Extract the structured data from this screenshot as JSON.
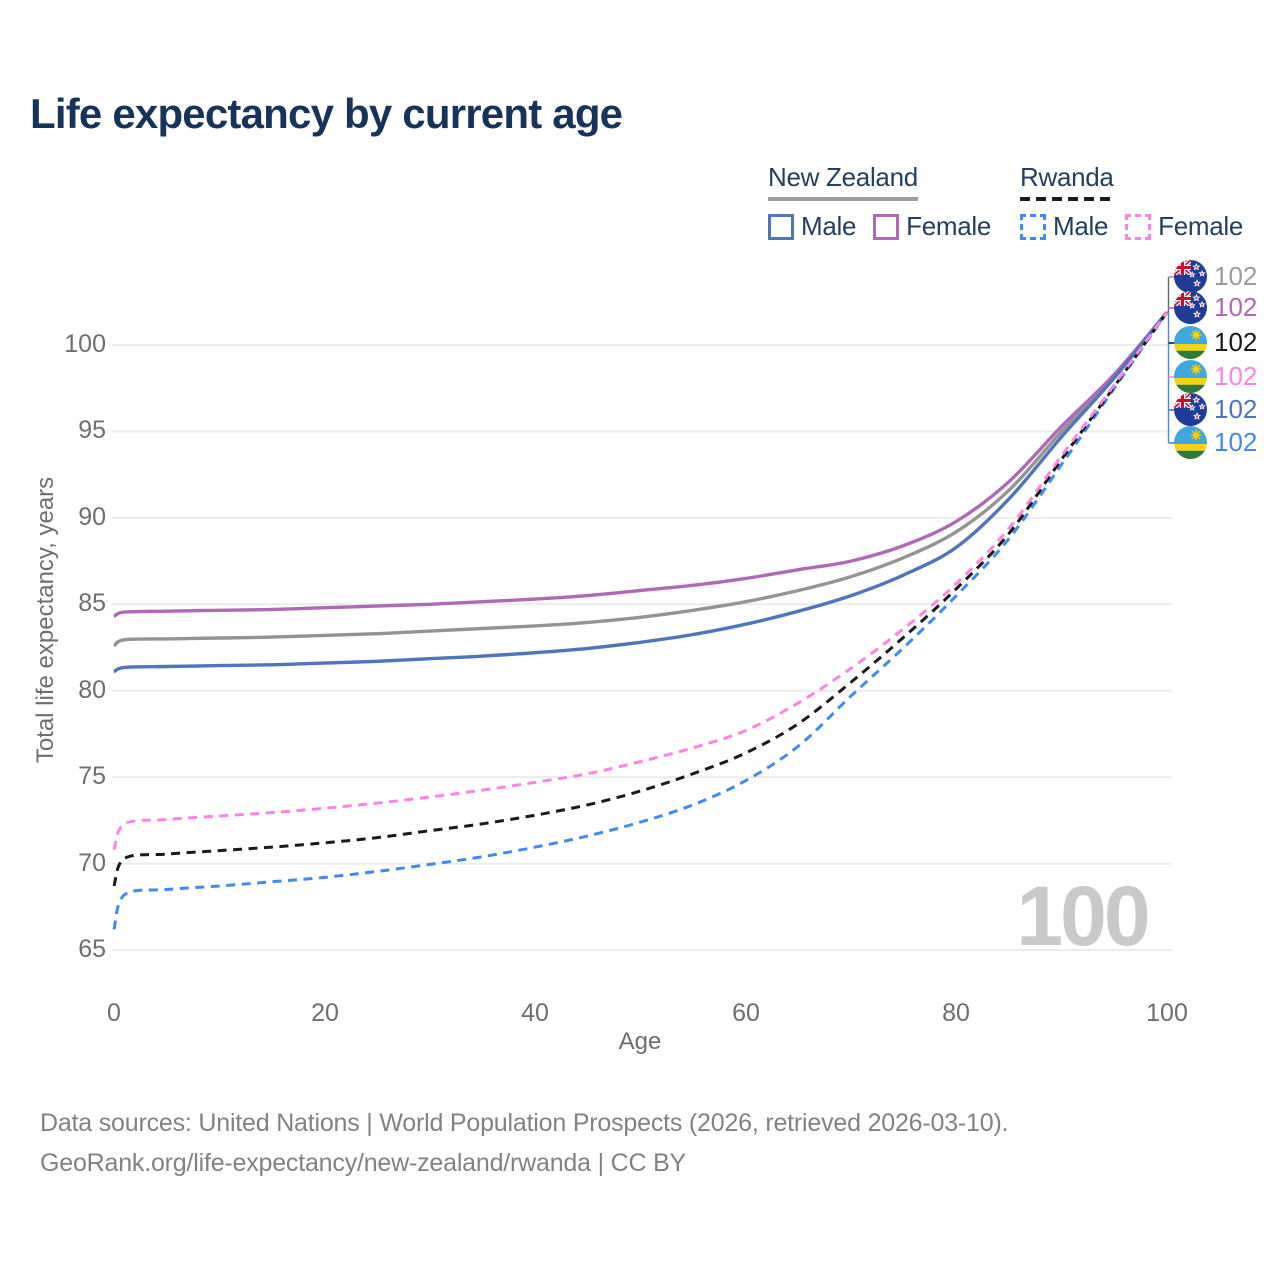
{
  "title": "Life expectancy by current age",
  "watermark_age": "100",
  "legend": {
    "groups": [
      {
        "country": "New Zealand",
        "line_style": "solid",
        "underline_color": "#9e9e9e",
        "items": [
          {
            "label": "Male",
            "color": "#4f75bd"
          },
          {
            "label": "Female",
            "color": "#b06ab5"
          }
        ]
      },
      {
        "country": "Rwanda",
        "line_style": "dashed",
        "underline_color": "#1a1a1a",
        "items": [
          {
            "label": "Male",
            "color": "#4189f4"
          },
          {
            "label": "Female",
            "color": "#fc84e4"
          }
        ]
      }
    ]
  },
  "chart_data": {
    "type": "line",
    "title": "Life expectancy by current age",
    "xlabel": "Age",
    "ylabel": "Total life expectancy, years",
    "xlim": [
      0,
      100
    ],
    "ylim": [
      64.5,
      102.5
    ],
    "x_ticks": [
      0,
      20,
      40,
      60,
      80,
      100
    ],
    "y_ticks": [
      65,
      70,
      75,
      80,
      85,
      90,
      95,
      100
    ],
    "grid": "horizontal",
    "gridline_color": "#ececec",
    "legend_position": "top-right",
    "ages": [
      0,
      1,
      5,
      10,
      15,
      20,
      25,
      30,
      35,
      40,
      45,
      50,
      55,
      60,
      65,
      70,
      75,
      80,
      85,
      90,
      95,
      100
    ],
    "series": [
      {
        "name": "New Zealand Both sexes",
        "country": "New Zealand",
        "sex": "Both sexes",
        "style": "solid",
        "color": "#949494",
        "values": [
          82.6,
          82.95,
          83.0,
          83.05,
          83.1,
          83.2,
          83.3,
          83.45,
          83.6,
          83.75,
          83.95,
          84.25,
          84.65,
          85.15,
          85.8,
          86.6,
          87.7,
          89.2,
          91.6,
          95.0,
          98.2,
          101.9
        ]
      },
      {
        "name": "New Zealand Female",
        "country": "New Zealand",
        "sex": "Female",
        "style": "solid",
        "color": "#b06ab5",
        "values": [
          84.3,
          84.55,
          84.6,
          84.65,
          84.7,
          84.8,
          84.9,
          85.0,
          85.15,
          85.3,
          85.5,
          85.8,
          86.1,
          86.5,
          87.0,
          87.5,
          88.4,
          89.8,
          92.1,
          95.3,
          98.3,
          101.9
        ]
      },
      {
        "name": "New Zealand Male",
        "country": "New Zealand",
        "sex": "Male",
        "style": "solid",
        "color": "#4f75bd",
        "values": [
          81.1,
          81.35,
          81.4,
          81.45,
          81.5,
          81.6,
          81.7,
          81.85,
          82.0,
          82.2,
          82.45,
          82.8,
          83.25,
          83.85,
          84.6,
          85.5,
          86.7,
          88.3,
          91.1,
          94.7,
          98.1,
          101.9
        ]
      },
      {
        "name": "Rwanda Male",
        "country": "Rwanda",
        "sex": "Male",
        "style": "dashed",
        "color": "#4189f4",
        "values": [
          66.2,
          68.2,
          68.5,
          68.7,
          68.95,
          69.2,
          69.55,
          69.95,
          70.4,
          70.95,
          71.6,
          72.4,
          73.4,
          74.8,
          76.8,
          79.7,
          82.5,
          85.5,
          88.8,
          93.1,
          97.5,
          101.9
        ]
      },
      {
        "name": "Rwanda Both sexes",
        "country": "Rwanda",
        "sex": "Both sexes",
        "style": "dashed",
        "color": "#1a1a1a",
        "values": [
          68.7,
          70.3,
          70.55,
          70.75,
          70.95,
          71.2,
          71.5,
          71.9,
          72.3,
          72.8,
          73.4,
          74.2,
          75.2,
          76.4,
          78.1,
          80.5,
          83.1,
          85.9,
          89.1,
          93.4,
          97.6,
          101.9
        ]
      },
      {
        "name": "Rwanda Female",
        "country": "Rwanda",
        "sex": "Female",
        "style": "dashed",
        "color": "#fc84e4",
        "values": [
          70.8,
          72.3,
          72.55,
          72.75,
          72.95,
          73.2,
          73.5,
          73.85,
          74.25,
          74.7,
          75.2,
          75.9,
          76.7,
          77.7,
          79.3,
          81.3,
          83.6,
          86.2,
          89.4,
          93.6,
          97.7,
          101.9
        ]
      }
    ],
    "end_labels": [
      {
        "flag": "new-zealand",
        "value": "102",
        "color": "#9b9b9b"
      },
      {
        "flag": "new-zealand",
        "value": "102",
        "color": "#b06ab5"
      },
      {
        "flag": "rwanda",
        "value": "102",
        "color": "#1a1a1a"
      },
      {
        "flag": "rwanda",
        "value": "102",
        "color": "#fc84e4"
      },
      {
        "flag": "new-zealand",
        "value": "102",
        "color": "#4f75bd"
      },
      {
        "flag": "rwanda",
        "value": "102",
        "color": "#4189f4"
      }
    ]
  },
  "footer": {
    "line1": "Data sources: United Nations | World Population Prospects (2026, retrieved 2026-03-10).",
    "line2": "GeoRank.org/life-expectancy/new-zealand/rwanda | CC BY"
  }
}
